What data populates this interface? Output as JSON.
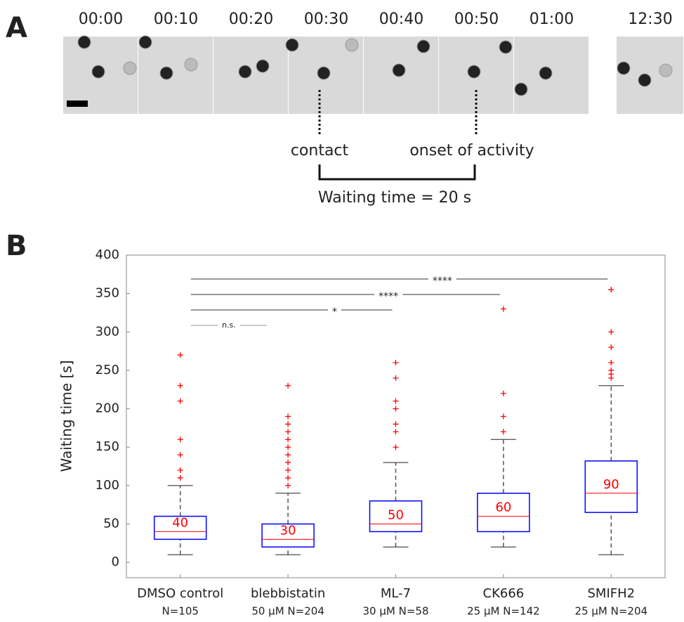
{
  "panel_a": {
    "label": "A",
    "times": [
      "00:00",
      "00:10",
      "00:20",
      "00:30",
      "00:40",
      "00:50",
      "01:00",
      "12:30"
    ],
    "contact": "contact",
    "onset": "onset of activity",
    "waiting": "Waiting time = 20 s"
  },
  "chart_data": {
    "type": "box",
    "panel_label": "B",
    "y_label": "Waiting time [s]",
    "categories": [
      "DMSO control",
      "blebbistatin",
      "ML-7",
      "CK666",
      "SMIFH2"
    ],
    "sublabels": [
      "N=105",
      "50 µM N=204",
      "30 µM N=58",
      "25 µM N=142",
      "25 µM N=204"
    ],
    "box_color": "#0000ff",
    "median_color": "#ff0000",
    "whisker_color": "#555555",
    "flier_color": "#ff0000",
    "boxes": [
      {
        "whislo": 10,
        "q1": 30,
        "med": 40,
        "q3": 60,
        "whishi": 100,
        "fliers": [
          110,
          120,
          140,
          160,
          210,
          230,
          270
        ]
      },
      {
        "whislo": 10,
        "q1": 20,
        "med": 30,
        "q3": 50,
        "whishi": 90,
        "fliers": [
          100,
          110,
          120,
          130,
          140,
          150,
          160,
          170,
          180,
          190,
          230
        ]
      },
      {
        "whislo": 20,
        "q1": 40,
        "med": 50,
        "q3": 80,
        "whishi": 130,
        "fliers": [
          150,
          170,
          180,
          200,
          210,
          240,
          260
        ]
      },
      {
        "whislo": 20,
        "q1": 40,
        "med": 60,
        "q3": 90,
        "whishi": 160,
        "fliers": [
          170,
          190,
          220,
          330
        ]
      },
      {
        "whislo": 10,
        "q1": 65,
        "med": 90,
        "q3": 132,
        "whishi": 230,
        "fliers": [
          240,
          245,
          250,
          260,
          280,
          300,
          355
        ]
      }
    ],
    "comparisons": [
      {
        "label": "n.s."
      },
      {
        "label": "*"
      },
      {
        "label": "****"
      },
      {
        "label": "****"
      }
    ],
    "ylim": [
      -20,
      400
    ],
    "yticks": [
      0,
      50,
      100,
      150,
      200,
      250,
      300,
      350,
      400
    ]
  }
}
